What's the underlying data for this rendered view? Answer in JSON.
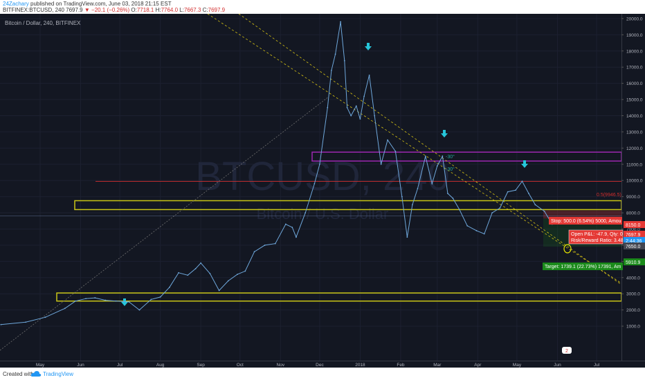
{
  "header": {
    "author": "24Zachary",
    "published_text": "published on TradingView.com, June 03, 2018 21:15 EST",
    "symbol_line": "BITFINEX:BTCUSD, 240",
    "last_price": "7697.9",
    "change_arrow": "▼",
    "change": "−20.1 (−0.26%)",
    "open_label": "O:",
    "open": "7718.1",
    "high_label": "H:",
    "high": "7764.0",
    "low_label": "L:",
    "low": "7667.3",
    "close_label": "C:",
    "close": "7697.9"
  },
  "legend_text": "Bitcoin / Dollar, 240, BITFINEX",
  "watermark": {
    "symbol": "BTCUSD, 240",
    "name": "Bitcoin / U.S. Dollar"
  },
  "annotations": {
    "angle1": "-30°",
    "angle2": "-30°",
    "fib_label": "0.5(9946.5)",
    "stop": "Stop: 500.0 (6.54%) 5000, Amou",
    "open_pl": "Open P&L: -47.9, Qty: 0",
    "risk_reward": "Risk/Reward Ratio: 3.48",
    "target": "Target: 1739.1 (22.73%) 17391, Am",
    "flag_icon_text": "2"
  },
  "price_labels": {
    "stop_price": "8150.0",
    "last_price": "7697.9",
    "countdown": "2:44:36",
    "entry_price": "7650.0",
    "target_price": "5910.9"
  },
  "colors": {
    "background": "#131722",
    "price_line": "#6fa8dc",
    "zone_yellow": "#c9c516",
    "zone_purple": "#9c27b0",
    "trend_yellow": "#d6c214",
    "fib_red": "#d32f2f",
    "arrow_cyan": "#26c6da",
    "stop_red": "#e53935",
    "target_green": "#1b8a1b"
  },
  "footer": {
    "created_with": "Created with",
    "brand": "TradingView"
  },
  "chart_data": {
    "type": "line",
    "x": [
      "2017-04-01",
      "2017-04-20",
      "2017-05-05",
      "2017-05-20",
      "2017-05-28",
      "2017-06-05",
      "2017-06-12",
      "2017-06-20",
      "2017-06-28",
      "2017-07-08",
      "2017-07-16",
      "2017-07-25",
      "2017-08-01",
      "2017-08-08",
      "2017-08-15",
      "2017-08-22",
      "2017-08-28",
      "2017-09-01",
      "2017-09-08",
      "2017-09-15",
      "2017-09-22",
      "2017-09-29",
      "2017-10-05",
      "2017-10-12",
      "2017-10-20",
      "2017-10-28",
      "2017-11-05",
      "2017-11-10",
      "2017-11-13",
      "2017-11-20",
      "2017-11-27",
      "2017-12-01",
      "2017-12-07",
      "2017-12-10",
      "2017-12-13",
      "2017-12-17",
      "2017-12-20",
      "2017-12-22",
      "2017-12-25",
      "2017-12-29",
      "2018-01-01",
      "2018-01-04",
      "2018-01-08",
      "2018-01-12",
      "2018-01-17",
      "2018-01-22",
      "2018-01-28",
      "2018-02-02",
      "2018-02-06",
      "2018-02-10",
      "2018-02-14",
      "2018-02-20",
      "2018-02-25",
      "2018-03-01",
      "2018-03-05",
      "2018-03-09",
      "2018-03-13",
      "2018-03-18",
      "2018-03-24",
      "2018-03-31",
      "2018-04-06",
      "2018-04-12",
      "2018-04-18",
      "2018-04-24",
      "2018-04-30",
      "2018-05-05",
      "2018-05-10",
      "2018-05-15",
      "2018-05-22",
      "2018-05-28",
      "2018-06-02"
    ],
    "y": [
      1100,
      1250,
      1550,
      2100,
      2550,
      2700,
      2750,
      2600,
      2550,
      2500,
      2000,
      2650,
      2800,
      3400,
      4300,
      4150,
      4550,
      4900,
      4250,
      3200,
      3800,
      4200,
      4400,
      5600,
      6000,
      6100,
      7300,
      7100,
      6500,
      8000,
      9800,
      11000,
      14500,
      16800,
      17800,
      19800,
      17400,
      14500,
      14000,
      14600,
      13800,
      15200,
      16500,
      14000,
      11000,
      12500,
      11800,
      9000,
      6500,
      8500,
      9500,
      11500,
      9800,
      10900,
      11500,
      9200,
      8900,
      8200,
      7200,
      6900,
      6700,
      8000,
      8300,
      9300,
      9400,
      9950,
      9200,
      8500,
      8100,
      7300,
      7700
    ],
    "ylim": [
      0,
      21000
    ],
    "y_ticks": [
      "20000.0",
      "19000.0",
      "18000.0",
      "17000.0",
      "16000.0",
      "15000.0",
      "14000.0",
      "13000.0",
      "12000.0",
      "11000.0",
      "10000.0",
      "9000.0",
      "8000.0",
      "7000.0",
      "6000.0",
      "5000.0",
      "4000.0",
      "3000.0",
      "2000.0",
      "1000.0"
    ],
    "x_ticks": [
      "May",
      "Jun",
      "Jul",
      "Aug",
      "Sep",
      "Oct",
      "Nov",
      "Dec",
      "2018",
      "Feb",
      "Mar",
      "Apr",
      "May",
      "Jun",
      "Jul"
    ],
    "levels": {
      "fib_05": 9946.5,
      "stop": 8150.0,
      "entry": 7650.0,
      "target": 5910.9
    },
    "zones": [
      {
        "name": "resistance-purple",
        "low": 11200,
        "high": 11750
      },
      {
        "name": "support-yellow-mid",
        "low": 8200,
        "high": 8750
      },
      {
        "name": "support-yellow-low",
        "low": 2550,
        "high": 3050
      }
    ],
    "grid": true,
    "legend_position": "top-left"
  }
}
